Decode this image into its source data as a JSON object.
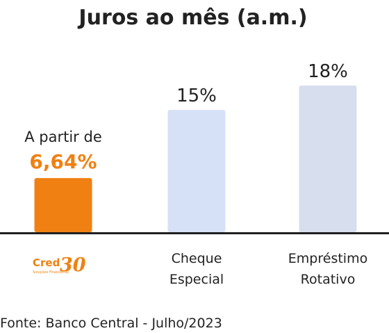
{
  "chart_data": {
    "type": "bar",
    "title": "Juros ao mês (a.m.)",
    "xlabel": "",
    "ylabel": "",
    "ylim": [
      0,
      20
    ],
    "categories": [
      "Cred30",
      "Cheque Especial",
      "Empréstimo Rotativo"
    ],
    "category_lines": [
      [
        "Cheque",
        "Especial"
      ],
      [
        "Empréstimo",
        "Rotativo"
      ]
    ],
    "values": [
      6.64,
      15,
      18
    ],
    "value_labels": [
      "6,64%",
      "15%",
      "18%"
    ],
    "first_bar_prefix": "A partir de",
    "bar_colors": [
      "#F08012",
      "#D6E1F7",
      "#D7DFEE"
    ],
    "highlight_color": "#F08012",
    "grid": false
  },
  "logo": {
    "text": "Cred",
    "number": "30",
    "tagline": "Soluções Financeiras",
    "color": "#F08012"
  },
  "source": "Fonte: Banco Central - Julho/2023"
}
